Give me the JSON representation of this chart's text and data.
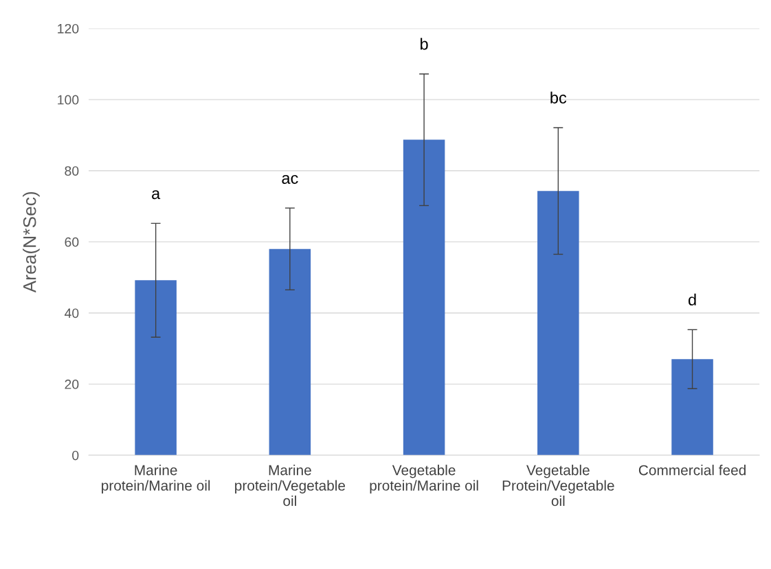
{
  "chart_data": {
    "type": "bar",
    "ylabel": "Area(N*Sec)",
    "categories": [
      "Marine\nprotein/Marine oil",
      "Marine\nprotein/Vegetable\noil",
      "Vegetable\nprotein/Marine oil",
      "Vegetable\nProtein/Vegetable\noil",
      "Commercial feed"
    ],
    "values": [
      49.2,
      58.0,
      88.7,
      74.3,
      27.0
    ],
    "errors": [
      16,
      11.5,
      18.5,
      17.8,
      8.3
    ],
    "color": "#4472c4",
    "ylim": [
      0,
      120
    ],
    "yticks": [
      0,
      20,
      40,
      60,
      80,
      100,
      120
    ],
    "grid": "y",
    "annotations": [
      "a",
      "ac",
      "b",
      "bc",
      "d"
    ]
  }
}
